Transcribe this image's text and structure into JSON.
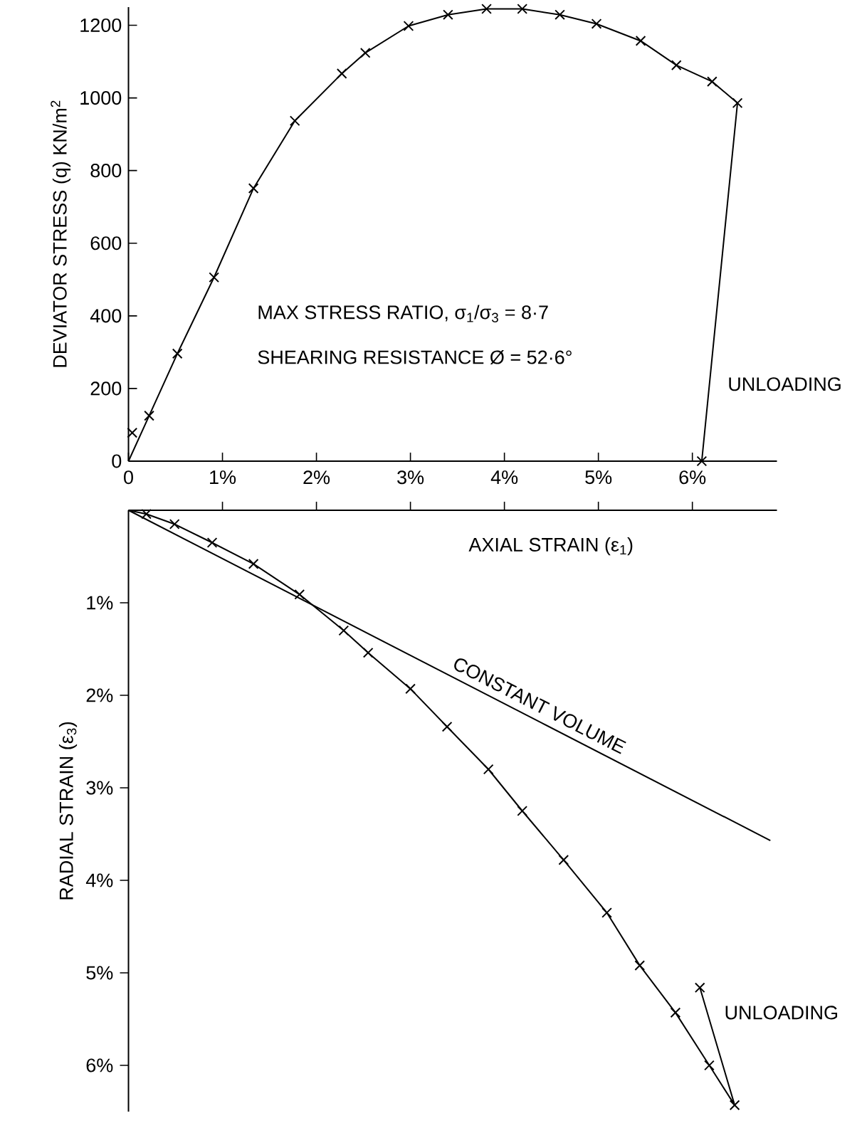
{
  "chart_data": [
    {
      "type": "line",
      "ylabel": "DEVIATOR STRESS (q) KN/m$^{2}$",
      "xlim": [
        0,
        6.9
      ],
      "ylim": [
        0,
        1250
      ],
      "xticks": [
        0,
        {
          "value": 1,
          "label": "1%"
        },
        {
          "value": 2,
          "label": "2%"
        },
        {
          "value": 3,
          "label": "3%"
        },
        {
          "value": 4,
          "label": "4%"
        },
        {
          "value": 5,
          "label": "5%"
        },
        {
          "value": 6,
          "label": "6%"
        }
      ],
      "yticks": [
        0,
        200,
        400,
        600,
        800,
        1000,
        1200
      ],
      "series": [
        {
          "type": "scatter",
          "marker": "cross",
          "color": "#000000",
          "x": [
            0.04,
            0.22,
            0.52,
            0.91,
            1.33,
            1.77,
            2.27,
            2.52,
            2.98,
            3.4,
            3.81,
            4.19,
            4.59,
            4.98,
            5.45,
            5.83,
            6.21,
            6.48,
            6.1
          ],
          "values": [
            78,
            125,
            296,
            506,
            751,
            937,
            1067,
            1124,
            1198,
            1229,
            1245,
            1245,
            1229,
            1204,
            1157,
            1090,
            1045,
            986,
            0
          ]
        },
        {
          "type": "line",
          "marker": "none",
          "line_style": "solid",
          "color": "#000000",
          "x": [
            0,
            0.22,
            0.52,
            0.91,
            1.33,
            1.77,
            2.27,
            2.52,
            2.98,
            3.4,
            3.81,
            4.19,
            4.59,
            4.98,
            5.45,
            5.83,
            6.21,
            6.48,
            6.1
          ],
          "values": [
            0,
            125,
            296,
            506,
            751,
            937,
            1067,
            1124,
            1198,
            1229,
            1245,
            1245,
            1229,
            1204,
            1157,
            1090,
            1045,
            986,
            0
          ]
        }
      ],
      "annotations": [
        "MAX STRESS RATIO, σ$_{1}$/σ$_{3}$ = 8·7",
        "SHEARING RESISTANCE Ø = 52·6°",
        {
          "text": "UNLOADING",
          "x": 6.2,
          "y": 212
        }
      ]
    },
    {
      "type": "line",
      "xlabel": "AXIAL STRAIN (ε$_{1}$)",
      "ylabel": "RADIAL STRAIN (ε$_{3}$)",
      "xlim": [
        0,
        6.9
      ],
      "ylim": [
        6.5,
        0
      ],
      "tick_labels": "y",
      "xticks": [
        {
          "value": 1,
          "label": null
        },
        {
          "value": 2,
          "label": null
        },
        {
          "value": 3,
          "label": null
        },
        {
          "value": 4,
          "label": null
        },
        {
          "value": 5,
          "label": null
        },
        {
          "value": 6,
          "label": null
        }
      ],
      "yticks": [
        {
          "value": 1,
          "label": "1%"
        },
        {
          "value": 2,
          "label": "2%"
        },
        {
          "value": 3,
          "label": "3%"
        },
        {
          "value": 4,
          "label": "4%"
        },
        {
          "value": 5,
          "label": "5%"
        },
        {
          "value": 6,
          "label": "6%"
        }
      ],
      "series": [
        {
          "type": "scatter",
          "marker": "cross",
          "color": "#000000",
          "x": [
            0.19,
            0.49,
            0.89,
            1.33,
            1.82,
            2.29,
            2.55,
            3.0,
            3.39,
            3.83,
            4.19,
            4.63,
            5.09,
            5.44,
            5.82,
            6.18,
            6.45,
            6.08
          ],
          "values": [
            0.04,
            0.15,
            0.35,
            0.58,
            0.91,
            1.3,
            1.54,
            1.93,
            2.34,
            2.8,
            3.25,
            3.78,
            4.35,
            4.92,
            5.43,
            6.0,
            6.43,
            5.16
          ]
        },
        {
          "type": "line",
          "marker": "none",
          "line_style": "solid",
          "color": "#000000",
          "x": [
            0,
            0.19,
            0.49,
            0.89,
            1.33,
            1.82,
            2.29,
            2.55,
            3.0,
            3.39,
            3.83,
            4.19,
            4.63,
            5.09,
            5.44,
            5.82,
            6.18,
            6.45,
            6.08
          ],
          "values": [
            0,
            0.04,
            0.15,
            0.35,
            0.58,
            0.91,
            1.3,
            1.54,
            1.93,
            2.34,
            2.8,
            3.25,
            3.78,
            4.35,
            4.92,
            5.43,
            6.0,
            6.43,
            5.16
          ]
        },
        {
          "type": "line",
          "marker": "none",
          "line_style": "solid",
          "color": "#000000",
          "x": [
            0,
            6.83
          ],
          "values": [
            0,
            3.57
          ]
        }
      ],
      "annotations": [
        {
          "text": "CONSTANT VOLUME",
          "x": 4.3,
          "y": 2.25
        },
        "UNLOADING"
      ]
    }
  ]
}
